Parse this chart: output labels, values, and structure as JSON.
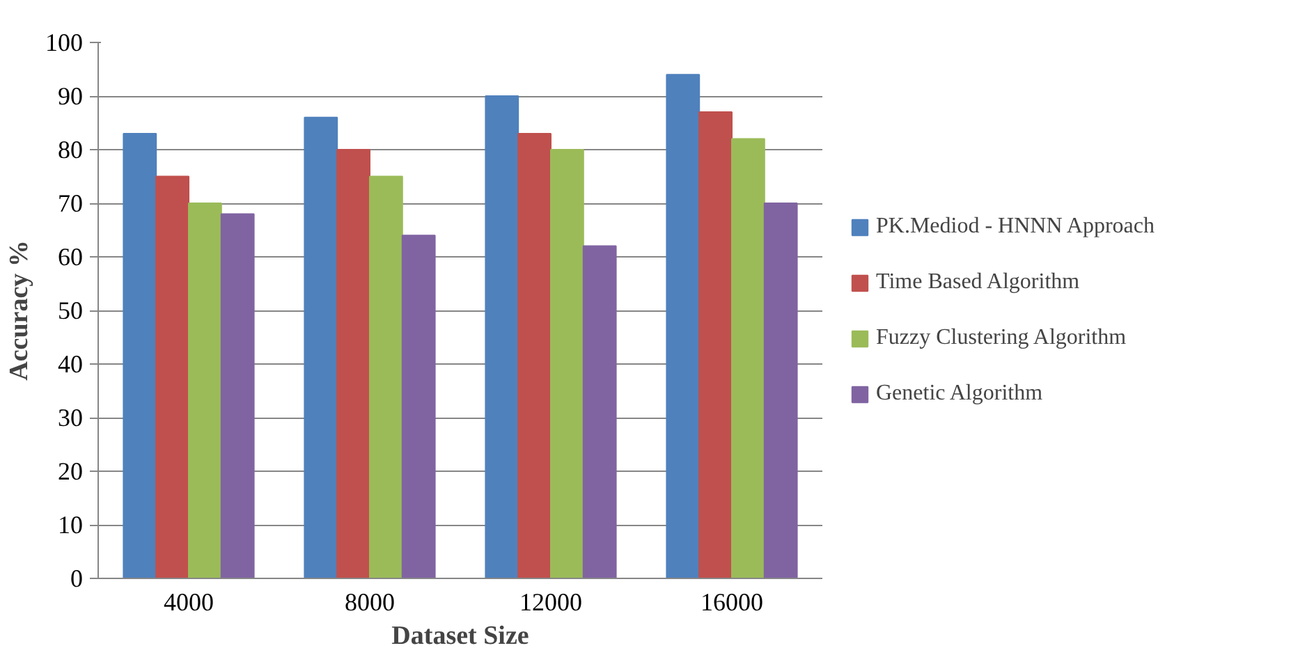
{
  "chart_data": {
    "type": "bar",
    "xlabel": "Dataset Size",
    "ylabel": "Accuracy %",
    "categories": [
      "4000",
      "8000",
      "12000",
      "16000"
    ],
    "series": [
      {
        "name": "PK.Mediod - HNNN Approach",
        "color": "#4f81bd",
        "values": [
          83,
          86,
          90,
          94
        ]
      },
      {
        "name": "Time Based Algorithm",
        "color": "#c0504d",
        "values": [
          75,
          80,
          83,
          87
        ]
      },
      {
        "name": "Fuzzy Clustering Algorithm",
        "color": "#9bbb59",
        "values": [
          70,
          75,
          80,
          82
        ]
      },
      {
        "name": "Genetic Algorithm",
        "color": "#8064a2",
        "values": [
          68,
          64,
          62,
          70
        ]
      }
    ],
    "ylim": [
      0,
      100
    ],
    "yticks": [
      0,
      10,
      20,
      30,
      40,
      50,
      60,
      70,
      80,
      90,
      100
    ],
    "grid": "y",
    "legend": "right"
  }
}
